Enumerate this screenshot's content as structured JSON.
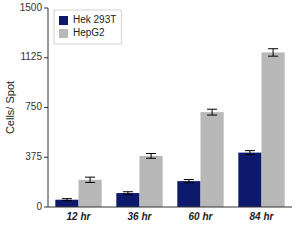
{
  "chart_data": {
    "type": "bar",
    "categories": [
      "12 hr",
      "36 hr",
      "60 hr",
      "84 hr"
    ],
    "series": [
      {
        "name": "Hek 293T",
        "color": "#0d1a6b",
        "values": [
          55,
          105,
          195,
          410
        ],
        "errors": [
          8,
          10,
          12,
          15
        ]
      },
      {
        "name": "HepG2",
        "color": "#b8b8b8",
        "values": [
          205,
          385,
          715,
          1165
        ],
        "errors": [
          20,
          18,
          22,
          28
        ]
      }
    ],
    "ylabel": "Cells/ Spot",
    "ylim": [
      0,
      1500
    ],
    "yticks": [
      0,
      375,
      750,
      1125,
      1500
    ],
    "grid": false,
    "legend": "upper left"
  }
}
